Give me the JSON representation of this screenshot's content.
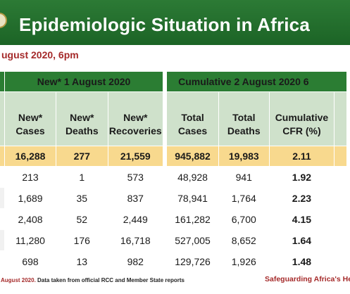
{
  "header": {
    "title": "Epidemiologic Situation in Africa",
    "subtitle_date": "ugust 2020, 6pm"
  },
  "table": {
    "group_headers": {
      "new": "New* 1 August 2020",
      "cumulative": "Cumulative 2 August 2020 6"
    },
    "columns": [
      {
        "line1": "New*",
        "line2": "Cases"
      },
      {
        "line1": "New*",
        "line2": "Deaths"
      },
      {
        "line1": "New*",
        "line2": "Recoveries"
      },
      {
        "line1": "Total",
        "line2": "Cases"
      },
      {
        "line1": "Total",
        "line2": "Deaths"
      },
      {
        "line1": "Cumulative",
        "line2": "CFR (%)"
      }
    ],
    "total_row": [
      "16,288",
      "277",
      "21,559",
      "945,882",
      "19,983",
      "2.11"
    ],
    "rows": [
      [
        "213",
        "1",
        "573",
        "48,928",
        "941",
        "1.92"
      ],
      [
        "1,689",
        "35",
        "837",
        "78,941",
        "1,764",
        "2.23"
      ],
      [
        "2,408",
        "52",
        "2,449",
        "161,282",
        "6,700",
        "4.15"
      ],
      [
        "11,280",
        "176",
        "16,718",
        "527,005",
        "8,652",
        "1.64"
      ],
      [
        "698",
        "13",
        "982",
        "129,726",
        "1,926",
        "1.48"
      ]
    ]
  },
  "footer": {
    "date_part": "August 2020.",
    "source_text": " Data taken from official RCC and Member State reports",
    "tagline": "Safeguarding Africa's Health"
  },
  "colors": {
    "header_green": "#1c6426",
    "column_header_green": "#cfe1cb",
    "total_row_yellow": "#f8d98e",
    "date_red": "#a52a2a"
  }
}
